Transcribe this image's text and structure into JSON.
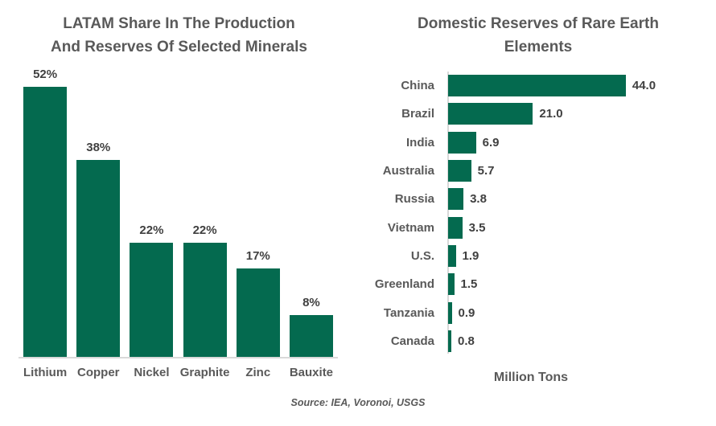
{
  "source_note": "Source: IEA, Voronoi, USGS",
  "colors": {
    "bar_green": "#046A4F",
    "title_gray": "#595959",
    "value_dark": "#404040",
    "axis_gray": "#D9D9D9",
    "background": "#FFFFFF"
  },
  "chart_data": [
    {
      "type": "bar",
      "orientation": "vertical",
      "title": "LATAM Share In The Production And Reserves Of Selected Minerals",
      "title_lines": [
        "LATAM Share In The Production",
        "And Reserves Of Selected Minerals"
      ],
      "categories": [
        "Lithium",
        "Copper",
        "Nickel",
        "Graphite",
        "Zinc",
        "Bauxite"
      ],
      "values": [
        52,
        38,
        22,
        22,
        17,
        8
      ],
      "value_labels": [
        "52%",
        "38%",
        "22%",
        "22%",
        "17%",
        "8%"
      ],
      "unit": "%",
      "xlabel": "",
      "ylabel": "",
      "ylim": [
        0,
        52
      ],
      "grid": false,
      "legend": false,
      "data_labels": "above bars"
    },
    {
      "type": "bar",
      "orientation": "horizontal",
      "title": "Domestic Reserves of Rare Earth Elements",
      "title_lines": [
        "Domestic Reserves of Rare Earth",
        "Elements"
      ],
      "categories": [
        "China",
        "Brazil",
        "India",
        "Australia",
        "Russia",
        "Vietnam",
        "U.S.",
        "Greenland",
        "Tanzania",
        "Canada"
      ],
      "values": [
        44.0,
        21.0,
        6.9,
        5.7,
        3.8,
        3.5,
        1.9,
        1.5,
        0.9,
        0.8
      ],
      "value_labels": [
        "44.0",
        "21.0",
        "6.9",
        "5.7",
        "3.8",
        "3.5",
        "1.9",
        "1.5",
        "0.9",
        "0.8"
      ],
      "xlabel": "Million Tons",
      "ylabel": "",
      "xlim": [
        0,
        44
      ],
      "grid": false,
      "legend": false,
      "data_labels": "right of bars"
    }
  ]
}
